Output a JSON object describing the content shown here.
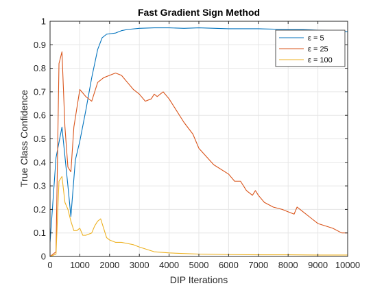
{
  "chart_data": {
    "type": "line",
    "title": "Fast Gradient Sign Method",
    "xlabel": "DIP Iterations",
    "ylabel": "True Class Confidence",
    "xlim": [
      0,
      10000
    ],
    "ylim": [
      0,
      1
    ],
    "xticks": [
      0,
      1000,
      2000,
      3000,
      4000,
      5000,
      6000,
      7000,
      8000,
      9000,
      10000
    ],
    "yticks": [
      0,
      0.1,
      0.2,
      0.3,
      0.4,
      0.5,
      0.6,
      0.7,
      0.8,
      0.9,
      1
    ],
    "ytick_labels": [
      "0",
      "0.1",
      "0.2",
      "0.3",
      "0.4",
      "0.5",
      "0.6",
      "0.7",
      "0.8",
      "0.9",
      "1"
    ],
    "grid": true,
    "legend": {
      "placement": "top-right",
      "entries": [
        "ε = 5",
        "ε = 25",
        "ε = 100"
      ]
    },
    "series": [
      {
        "name": "ε = 5",
        "color": "#0072BD",
        "x": [
          0,
          200,
          400,
          600,
          700,
          850,
          1000,
          1200,
          1400,
          1600,
          1750,
          1900,
          2200,
          2400,
          2600,
          3000,
          3500,
          4000,
          4500,
          5000,
          6000,
          7000,
          8000,
          8500,
          9000,
          9500,
          10000
        ],
        "y": [
          0.06,
          0.42,
          0.55,
          0.3,
          0.17,
          0.41,
          0.49,
          0.62,
          0.76,
          0.88,
          0.93,
          0.945,
          0.95,
          0.96,
          0.965,
          0.97,
          0.972,
          0.972,
          0.97,
          0.972,
          0.968,
          0.968,
          0.965,
          0.965,
          0.962,
          0.96,
          0.955
        ]
      },
      {
        "name": "ε = 25",
        "color": "#D95319",
        "x": [
          0,
          200,
          300,
          400,
          500,
          600,
          700,
          800,
          1000,
          1200,
          1400,
          1600,
          1800,
          2000,
          2200,
          2400,
          2600,
          2800,
          3000,
          3200,
          3400,
          3500,
          3600,
          3800,
          4000,
          4200,
          4500,
          4800,
          5000,
          5500,
          6000,
          6200,
          6400,
          6600,
          6800,
          6900,
          7000,
          7200,
          7500,
          7800,
          8000,
          8200,
          8300,
          8500,
          8800,
          9000,
          9500,
          9800,
          10000
        ],
        "y": [
          0.0,
          0.02,
          0.82,
          0.87,
          0.55,
          0.38,
          0.36,
          0.55,
          0.71,
          0.68,
          0.66,
          0.74,
          0.76,
          0.77,
          0.78,
          0.77,
          0.74,
          0.71,
          0.69,
          0.66,
          0.67,
          0.69,
          0.68,
          0.7,
          0.67,
          0.63,
          0.57,
          0.52,
          0.46,
          0.39,
          0.35,
          0.32,
          0.32,
          0.28,
          0.26,
          0.28,
          0.26,
          0.23,
          0.21,
          0.2,
          0.19,
          0.18,
          0.21,
          0.19,
          0.16,
          0.14,
          0.12,
          0.1,
          0.1
        ]
      },
      {
        "name": "ε = 100",
        "color": "#EDB120",
        "x": [
          0,
          200,
          300,
          400,
          500,
          600,
          700,
          800,
          900,
          1000,
          1100,
          1200,
          1400,
          1500,
          1600,
          1700,
          1800,
          1900,
          2000,
          2200,
          2400,
          2600,
          2800,
          3000,
          3500,
          4000,
          5000,
          6000,
          7000,
          8000,
          9000,
          10000
        ],
        "y": [
          0.0,
          0.01,
          0.32,
          0.34,
          0.23,
          0.2,
          0.15,
          0.11,
          0.11,
          0.12,
          0.09,
          0.09,
          0.1,
          0.13,
          0.15,
          0.16,
          0.12,
          0.08,
          0.07,
          0.06,
          0.06,
          0.055,
          0.05,
          0.04,
          0.02,
          0.015,
          0.01,
          0.008,
          0.007,
          0.007,
          0.006,
          0.006
        ]
      }
    ]
  }
}
